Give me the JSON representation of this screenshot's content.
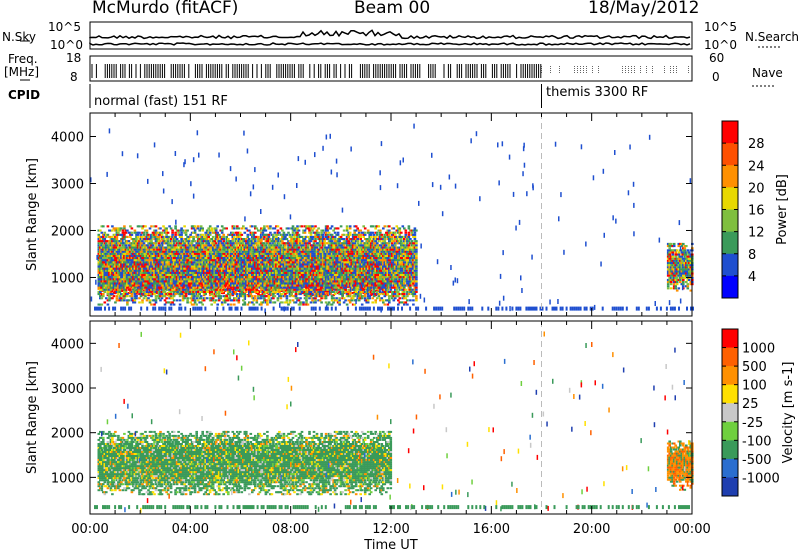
{
  "header": {
    "station": "McMurdo (fitACF)",
    "beam": "Beam 00",
    "date": "18/May/2012"
  },
  "top_panels": {
    "nsky_label": "N.Sky",
    "nsearch_label": "N.Search",
    "noise_ticks": [
      "10^5",
      "10^0"
    ],
    "freq_label": "Freq.",
    "freq_unit": "[MHz]",
    "freq_ticks": [
      "18",
      "8"
    ],
    "nave_label": "Nave",
    "nave_ticks": [
      "60",
      "0"
    ],
    "cpid_label": "CPID",
    "cpid_programs": [
      {
        "name": "normal (fast) 151 RF",
        "start_hour": 0
      },
      {
        "name": "themis 3300 RF",
        "start_hour": 18
      }
    ]
  },
  "chart_data": [
    {
      "type": "heatmap",
      "panel": "power",
      "ylabel": "Slant Range [km]",
      "yticks": [
        1000,
        2000,
        3000,
        4000
      ],
      "ylim": [
        180,
        4500
      ],
      "xlim": [
        0,
        24
      ],
      "colorbar_label": "Power [dB]",
      "colorbar_ticks": [
        4,
        8,
        12,
        16,
        20,
        24,
        28
      ],
      "colorbar_colors": [
        "#0000ff",
        "#1f4fd0",
        "#3a9a5a",
        "#7fbf3f",
        "#e8d800",
        "#ff9000",
        "#ff5000",
        "#ff0000"
      ],
      "regions": [
        {
          "hours": [
            0.3,
            11.8
          ],
          "range_km": [
            600,
            1400
          ],
          "level": "high"
        },
        {
          "hours": [
            0.3,
            13.0
          ],
          "range_km": [
            400,
            2100
          ],
          "level": "mid"
        },
        {
          "hours": [
            23.0,
            24.0
          ],
          "range_km": [
            700,
            1700
          ],
          "level": "mid"
        }
      ]
    },
    {
      "type": "heatmap",
      "panel": "velocity",
      "ylabel": "Slant Range [km]",
      "yticks": [
        1000,
        2000,
        3000,
        4000
      ],
      "ylim": [
        180,
        4500
      ],
      "xlim": [
        0,
        24
      ],
      "xlabel": "Time UT",
      "xticks": [
        "00:00",
        "04:00",
        "08:00",
        "12:00",
        "16:00",
        "20:00",
        "00:00"
      ],
      "colorbar_label": "Velocity [m s-1]",
      "colorbar_ticks": [
        "1000",
        "500",
        "100",
        "25",
        "-25",
        "-100",
        "-500",
        "-1000"
      ],
      "colorbar_colors": [
        "#1f3fb0",
        "#2a6ed0",
        "#3a9a5a",
        "#6fd03f",
        "#c8c8c8",
        "#ffe000",
        "#ff9000",
        "#ff6000",
        "#ff0000"
      ],
      "regions": [
        {
          "hours": [
            0.3,
            12.0
          ],
          "range_km": [
            600,
            2000
          ],
          "level": "green"
        },
        {
          "hours": [
            23.0,
            24.0
          ],
          "range_km": [
            700,
            1800
          ],
          "level": "orange"
        }
      ]
    }
  ]
}
